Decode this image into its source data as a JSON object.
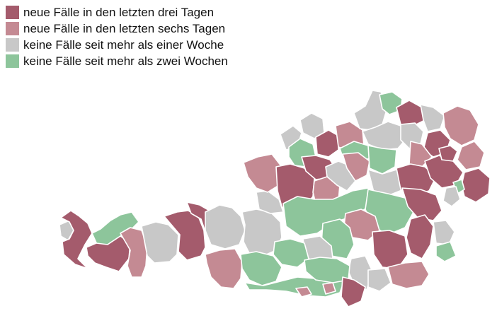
{
  "legend": {
    "items": [
      {
        "key": "drei",
        "label": "neue Fälle in den letzten drei Tagen",
        "color": "#a45b6c"
      },
      {
        "key": "sechs",
        "label": "neue Fälle in den letzten sechs Tagen",
        "color": "#c48a93"
      },
      {
        "key": "woche",
        "label": "keine Fälle seit mehr als einer Woche",
        "color": "#c8c8c8"
      },
      {
        "key": "zwei",
        "label": "keine Fälle seit mehr als zwei Wochen",
        "color": "#8dc59b"
      }
    ]
  }
}
